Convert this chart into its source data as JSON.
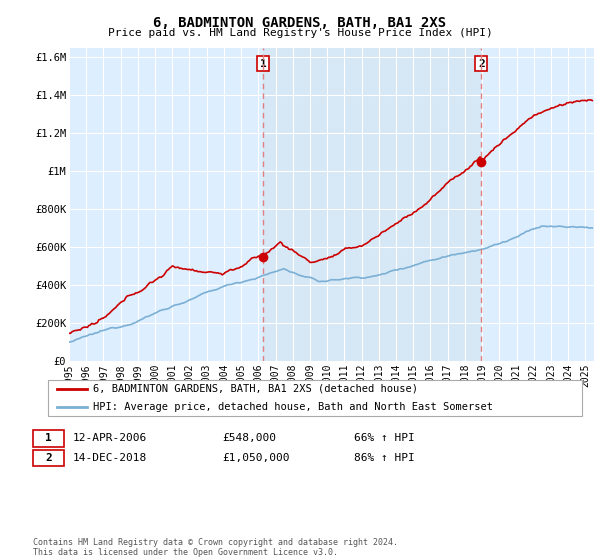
{
  "title": "6, BADMINTON GARDENS, BATH, BA1 2XS",
  "subtitle": "Price paid vs. HM Land Registry's House Price Index (HPI)",
  "xlim_start": 1995.0,
  "xlim_end": 2025.5,
  "ylim": [
    0,
    1650000
  ],
  "yticks": [
    0,
    200000,
    400000,
    600000,
    800000,
    1000000,
    1200000,
    1400000,
    1600000
  ],
  "ytick_labels": [
    "£0",
    "£200K",
    "£400K",
    "£600K",
    "£800K",
    "£1M",
    "£1.2M",
    "£1.4M",
    "£1.6M"
  ],
  "purchase1_date": 2006.28,
  "purchase1_price": 548000,
  "purchase2_date": 2018.95,
  "purchase2_price": 1050000,
  "hpi_color": "#7bafd4",
  "price_color": "#cc0000",
  "dashed_line_color": "#e08080",
  "shade_color": "#d6e8f5",
  "plot_bg_color": "#ddeeff",
  "grid_color": "#ffffff",
  "legend_label_red": "6, BADMINTON GARDENS, BATH, BA1 2XS (detached house)",
  "legend_label_blue": "HPI: Average price, detached house, Bath and North East Somerset",
  "annotation1": [
    "1",
    "12-APR-2006",
    "£548,000",
    "66% ↑ HPI"
  ],
  "annotation2": [
    "2",
    "14-DEC-2018",
    "£1,050,000",
    "86% ↑ HPI"
  ],
  "footnote": "Contains HM Land Registry data © Crown copyright and database right 2024.\nThis data is licensed under the Open Government Licence v3.0.",
  "xlabel_years": [
    1995,
    1996,
    1997,
    1998,
    1999,
    2000,
    2001,
    2002,
    2003,
    2004,
    2005,
    2006,
    2007,
    2008,
    2009,
    2010,
    2011,
    2012,
    2013,
    2014,
    2015,
    2016,
    2017,
    2018,
    2019,
    2020,
    2021,
    2022,
    2023,
    2024,
    2025
  ]
}
